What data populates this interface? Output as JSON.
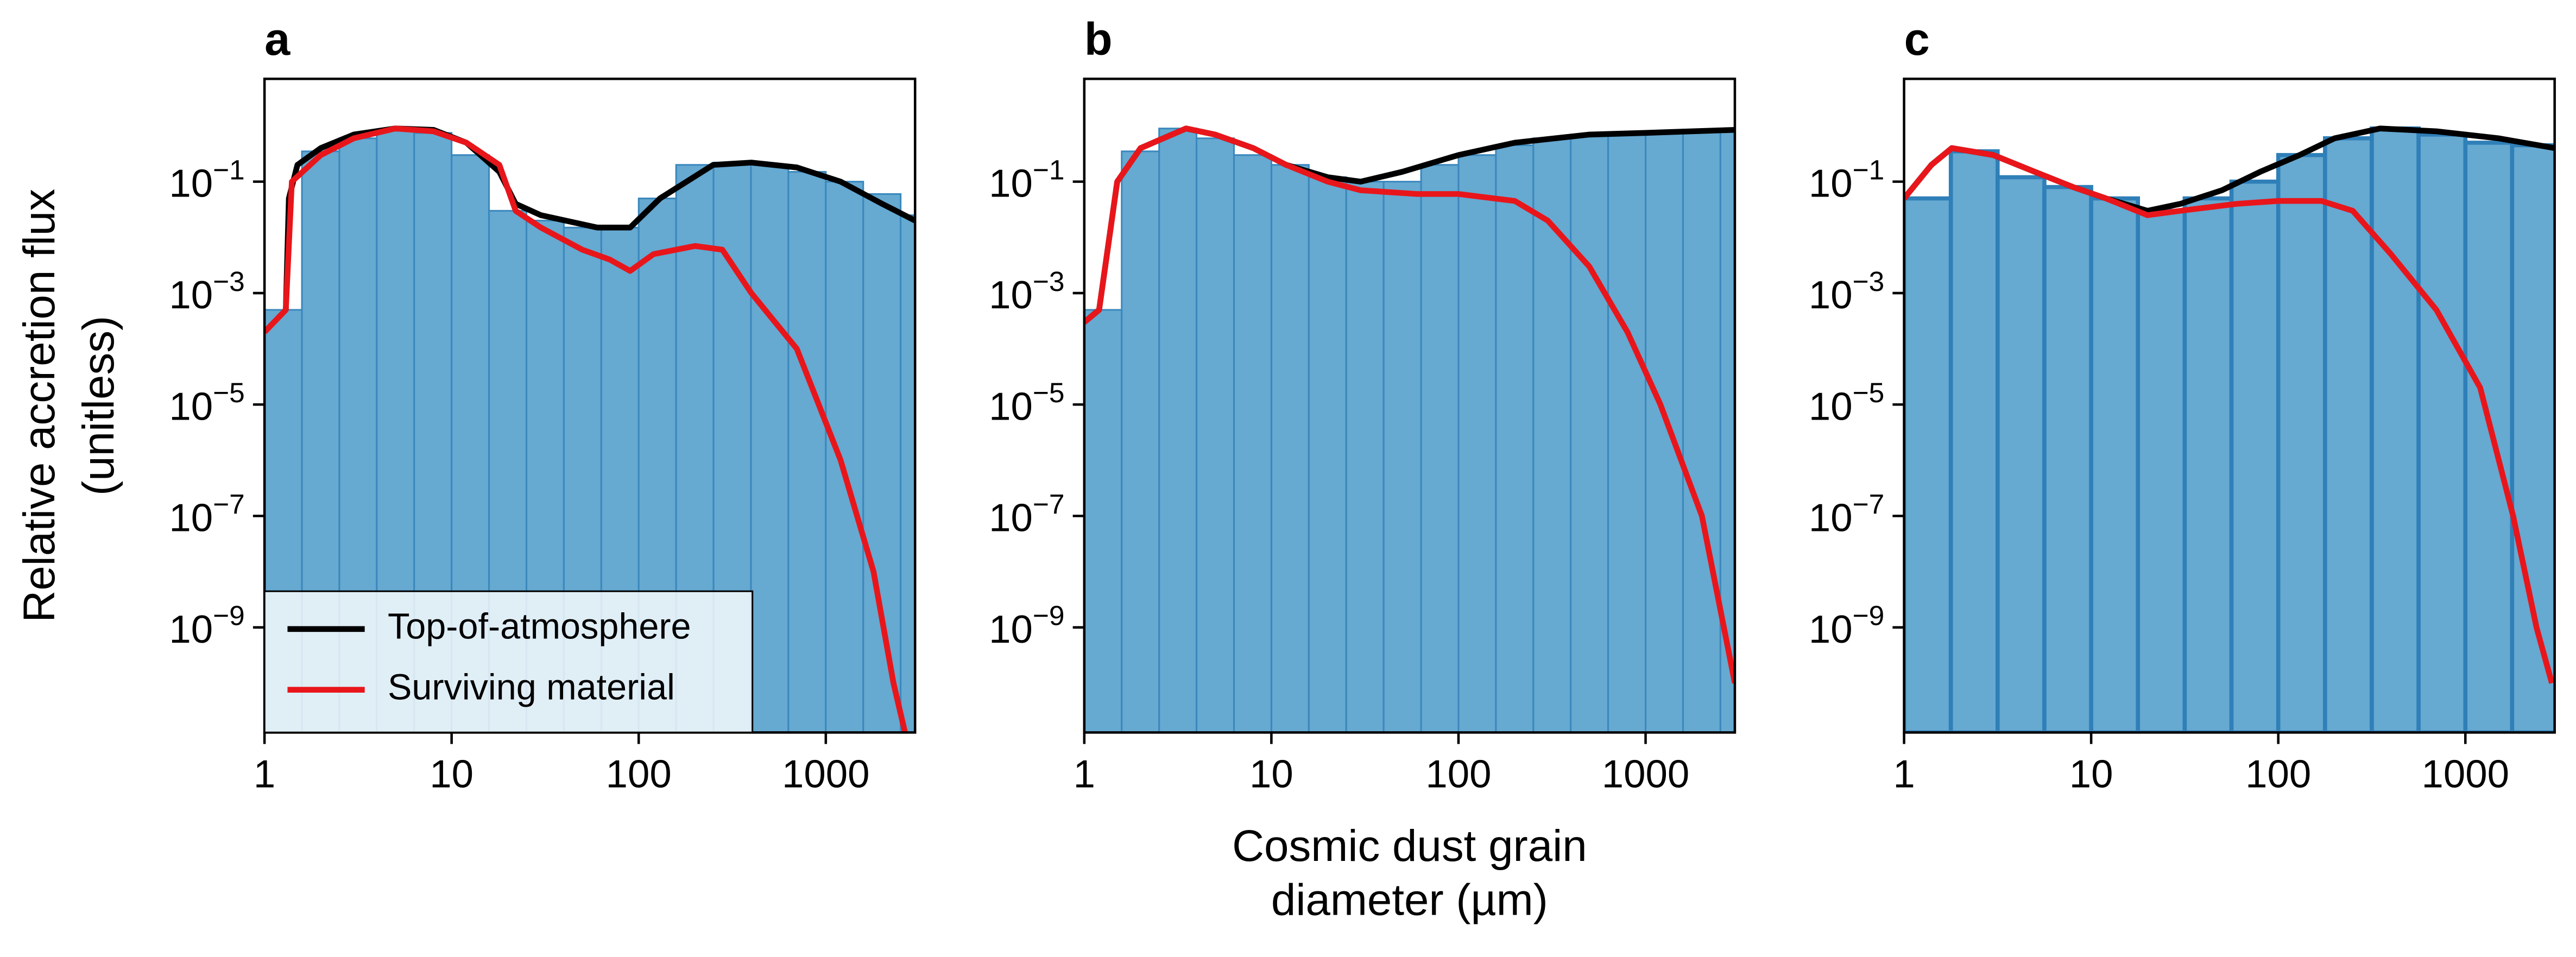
{
  "chart_data": [
    {
      "type": "histogram",
      "title": "a",
      "ylabel": [
        "Relative accretion flux",
        "(unitless)"
      ],
      "xscale": "log",
      "yscale": "log",
      "xlim": [
        1,
        3000
      ],
      "ylim": [
        1.3e-11,
        7
      ],
      "xticks": [
        1,
        10,
        100,
        1000
      ],
      "yticks": [
        {
          "value": 0.1,
          "label": "10−1"
        },
        {
          "value": 0.001,
          "label": "10−3"
        },
        {
          "value": 1e-05,
          "label": "10−5"
        },
        {
          "value": 1e-07,
          "label": "10−7"
        },
        {
          "value": 1e-09,
          "label": "10−9"
        }
      ],
      "bar_color": "#66a9d1",
      "edge_color": "#3a88bd",
      "bins": [
        1,
        1.585,
        2.512,
        3.981,
        6.31,
        10,
        15.85,
        25.12,
        39.81,
        63.1,
        100,
        158.5,
        251.2,
        398.1,
        631,
        1000,
        1585,
        2512,
        3981
      ],
      "counts": [
        0.0005,
        0.35,
        0.6,
        0.85,
        0.75,
        0.3,
        0.03,
        0.02,
        0.015,
        0.015,
        0.05,
        0.2,
        0.22,
        0.2,
        0.15,
        0.1,
        0.06,
        0.025
      ],
      "legend": "lower left",
      "series": [
        {
          "name": "Top-of-atmosphere",
          "color": "#000000",
          "x": [
            1.3,
            1.35,
            1.5,
            2,
            3,
            5,
            8,
            12,
            18,
            22,
            30,
            60,
            90,
            130,
            250,
            400,
            700,
            1200,
            2000,
            3000
          ],
          "values": [
            0.0005,
            0.05,
            0.2,
            0.4,
            0.7,
            0.9,
            0.85,
            0.5,
            0.15,
            0.04,
            0.025,
            0.015,
            0.015,
            0.05,
            0.2,
            0.22,
            0.18,
            0.1,
            0.04,
            0.02
          ]
        },
        {
          "name": "Surviving material",
          "color": "#e8161b",
          "x": [
            1,
            1.3,
            1.4,
            2,
            3,
            5,
            8,
            12,
            18,
            22,
            30,
            50,
            70,
            90,
            120,
            200,
            280,
            400,
            700,
            1200,
            1800,
            2300,
            2700
          ],
          "values": [
            0.0002,
            0.0005,
            0.1,
            0.3,
            0.6,
            0.9,
            0.8,
            0.5,
            0.2,
            0.03,
            0.015,
            0.006,
            0.004,
            0.0025,
            0.005,
            0.007,
            0.006,
            0.001,
            0.0001,
            1e-06,
            1e-08,
            1e-10,
            1e-11
          ]
        }
      ]
    },
    {
      "type": "histogram",
      "title": "b",
      "xlabel": [
        "Cosmic dust grain",
        "diameter (µm)"
      ],
      "xscale": "log",
      "yscale": "log",
      "xlim": [
        1,
        3000
      ],
      "ylim": [
        1.3e-11,
        7
      ],
      "xticks": [
        1,
        10,
        100,
        1000
      ],
      "yticks": [
        {
          "value": 0.1,
          "label": "10−1"
        },
        {
          "value": 0.001,
          "label": "10−3"
        },
        {
          "value": 1e-05,
          "label": "10−5"
        },
        {
          "value": 1e-07,
          "label": "10−7"
        },
        {
          "value": 1e-09,
          "label": "10−9"
        }
      ],
      "bar_color": "#66a9d1",
      "edge_color": "#3a88bd",
      "bins": [
        1,
        1.585,
        2.512,
        3.981,
        6.31,
        10,
        15.85,
        25.12,
        39.81,
        63.1,
        100,
        158.5,
        251.2,
        398.1,
        631,
        1000,
        1585,
        2512,
        3981
      ],
      "counts": [
        0.0005,
        0.35,
        0.9,
        0.6,
        0.3,
        0.2,
        0.12,
        0.1,
        0.1,
        0.2,
        0.3,
        0.45,
        0.6,
        0.7,
        0.7,
        0.75,
        0.8,
        0.8
      ],
      "series": [
        {
          "color": "#000000",
          "x": [
            1,
            1.2,
            1.5,
            2,
            3.5,
            5,
            8,
            12,
            20,
            30,
            50,
            100,
            200,
            500,
            1000,
            3000
          ],
          "values": [
            0.0003,
            0.0005,
            0.1,
            0.4,
            0.9,
            0.7,
            0.4,
            0.2,
            0.12,
            0.1,
            0.15,
            0.3,
            0.5,
            0.7,
            0.75,
            0.85
          ]
        },
        {
          "color": "#e8161b",
          "x": [
            1,
            1.2,
            1.5,
            2,
            3.5,
            5,
            8,
            12,
            20,
            30,
            60,
            100,
            200,
            300,
            500,
            800,
            1200,
            2000,
            3000
          ],
          "values": [
            0.0003,
            0.0005,
            0.1,
            0.4,
            0.9,
            0.7,
            0.4,
            0.2,
            0.1,
            0.07,
            0.06,
            0.06,
            0.045,
            0.02,
            0.003,
            0.0002,
            1e-05,
            1e-07,
            1e-10
          ]
        }
      ]
    },
    {
      "type": "histogram",
      "title": "c",
      "xscale": "log",
      "yscale": "log",
      "xlim": [
        1,
        3000
      ],
      "ylim": [
        1.3e-11,
        7
      ],
      "xticks": [
        1,
        10,
        100,
        1000
      ],
      "yticks": [
        {
          "value": 0.1,
          "label": "10−1"
        },
        {
          "value": 0.001,
          "label": "10−3"
        },
        {
          "value": 1e-05,
          "label": "10−5"
        },
        {
          "value": 1e-07,
          "label": "10−7"
        },
        {
          "value": 1e-09,
          "label": "10−9"
        }
      ],
      "bar_color": "#66a9d1",
      "edge_color": "#2f7fb8",
      "bins": [
        1,
        1.778,
        3.162,
        5.623,
        10,
        17.78,
        31.62,
        56.23,
        100,
        177.8,
        316.2,
        562.3,
        1000,
        1778,
        3162
      ],
      "counts": [
        0.05,
        0.35,
        0.12,
        0.08,
        0.05,
        0.03,
        0.05,
        0.1,
        0.3,
        0.6,
        0.9,
        0.7,
        0.5,
        0.45
      ],
      "series": [
        {
          "color": "#000000",
          "x": [
            1,
            1.4,
            1.8,
            3,
            5,
            8,
            12,
            20,
            30,
            50,
            80,
            130,
            200,
            350,
            700,
            1500,
            3000
          ],
          "values": [
            0.05,
            0.2,
            0.4,
            0.3,
            0.15,
            0.08,
            0.05,
            0.03,
            0.04,
            0.07,
            0.15,
            0.3,
            0.6,
            0.9,
            0.8,
            0.6,
            0.4
          ]
        },
        {
          "color": "#e8161b",
          "x": [
            1,
            1.4,
            1.8,
            3,
            5,
            8,
            12,
            20,
            30,
            60,
            100,
            170,
            250,
            400,
            700,
            1200,
            1800,
            2400,
            2900
          ],
          "values": [
            0.05,
            0.2,
            0.4,
            0.3,
            0.15,
            0.08,
            0.05,
            0.025,
            0.03,
            0.04,
            0.045,
            0.045,
            0.03,
            0.005,
            0.0005,
            2e-05,
            1e-07,
            1e-09,
            1e-10
          ]
        }
      ]
    }
  ]
}
